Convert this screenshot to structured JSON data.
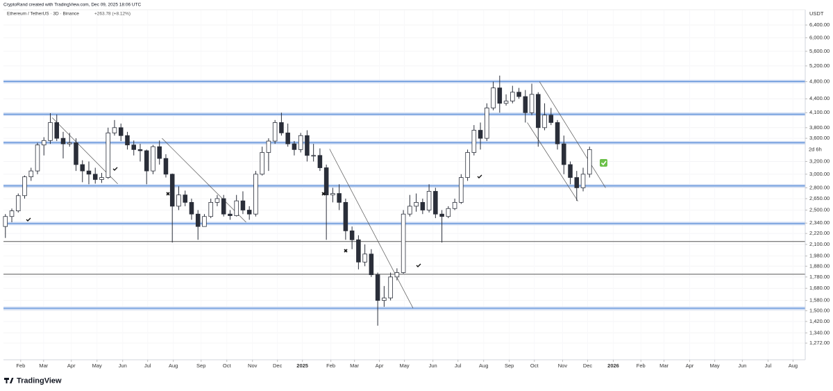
{
  "header": {
    "credit": "CryptoRand created with TradingView.com, Dec 09, 2025 18:06 UTC",
    "symbol": "Ethereum / TetherUS · 3D · Binance",
    "change": "+263.78 (+8.12%)",
    "logo": "TradingView"
  },
  "chart_data": {
    "type": "candlestick",
    "log_scale": true,
    "y_axis_label": "USDT",
    "countdown": "2d 6h",
    "grid": true,
    "up_color": "#ffffff",
    "down_color": "#2a2e39",
    "border_color": "#2a2e39",
    "xlim": [
      -0.3,
      124.6
    ],
    "ylim": [
      1169,
      6917
    ],
    "xticks": [
      {
        "value": 2.38,
        "label": "Feb"
      },
      {
        "value": 5.95,
        "label": "Mar"
      },
      {
        "value": 10.27,
        "label": "Apr"
      },
      {
        "value": 14.27,
        "label": "May"
      },
      {
        "value": 18.27,
        "label": "Jun"
      },
      {
        "value": 22.16,
        "label": "Jul"
      },
      {
        "value": 26.16,
        "label": "Aug"
      },
      {
        "value": 30.49,
        "label": "Sep"
      },
      {
        "value": 34.49,
        "label": "Oct"
      },
      {
        "value": 38.49,
        "label": "Nov"
      },
      {
        "value": 42.38,
        "label": "Dec"
      },
      {
        "value": 46.27,
        "label": "2025"
      },
      {
        "value": 50.7,
        "label": "Feb"
      },
      {
        "value": 54.38,
        "label": "Mar"
      },
      {
        "value": 58.27,
        "label": "Apr"
      },
      {
        "value": 62.16,
        "label": "May"
      },
      {
        "value": 66.6,
        "label": "Jun"
      },
      {
        "value": 70.5,
        "label": "Jul"
      },
      {
        "value": 74.5,
        "label": "Aug"
      },
      {
        "value": 78.5,
        "label": "Sep"
      },
      {
        "value": 82.4,
        "label": "Oct"
      },
      {
        "value": 86.8,
        "label": "Nov"
      },
      {
        "value": 90.7,
        "label": "Dec"
      },
      {
        "value": 94.7,
        "label": "2026"
      },
      {
        "value": 99.0,
        "label": "Feb"
      },
      {
        "value": 102.6,
        "label": "Mar"
      },
      {
        "value": 106.6,
        "label": "Apr"
      },
      {
        "value": 110.5,
        "label": "May"
      },
      {
        "value": 114.8,
        "label": "Jun"
      },
      {
        "value": 118.8,
        "label": "Jul"
      },
      {
        "value": 122.7,
        "label": "Aug"
      }
    ],
    "yticks": [
      {
        "value": 1272,
        "label": "1,272.00"
      },
      {
        "value": 1340,
        "label": "1,340.00"
      },
      {
        "value": 1420,
        "label": "1,420.00"
      },
      {
        "value": 1500,
        "label": "1,500.00"
      },
      {
        "value": 1580,
        "label": "1,580.00"
      },
      {
        "value": 1680,
        "label": "1,680.00"
      },
      {
        "value": 1780,
        "label": "1,780.00"
      },
      {
        "value": 1880,
        "label": "1,880.00"
      },
      {
        "value": 1980,
        "label": "1,980.00"
      },
      {
        "value": 2100,
        "label": "2,100.00"
      },
      {
        "value": 2220,
        "label": "2,220.00"
      },
      {
        "value": 2340,
        "label": "2,340.00"
      },
      {
        "value": 2500,
        "label": "2,500.00"
      },
      {
        "value": 2650,
        "label": "2,650.00"
      },
      {
        "value": 2800,
        "label": "2,800.00"
      },
      {
        "value": 3000,
        "label": "3,000.00"
      },
      {
        "value": 3200,
        "label": "3,200.00"
      },
      {
        "value": 3600,
        "label": "3,600.00"
      },
      {
        "value": 3800,
        "label": "3,800.00"
      },
      {
        "value": 4100,
        "label": "4,100.00"
      },
      {
        "value": 4400,
        "label": "4,400.00"
      },
      {
        "value": 4800,
        "label": "4,800.00"
      },
      {
        "value": 5200,
        "label": "5,200.00"
      },
      {
        "value": 5600,
        "label": "5,600.00"
      },
      {
        "value": 6000,
        "label": "6,000.00"
      },
      {
        "value": 6400,
        "label": "6,400.00"
      }
    ],
    "levels": [
      {
        "value": 4803,
        "color": "#5b8fd8",
        "zone": true
      },
      {
        "value": 4068,
        "color": "#5b8fd8",
        "zone": true
      },
      {
        "value": 3520,
        "color": "#5b8fd8",
        "zone": true
      },
      {
        "value": 2827,
        "color": "#5b8fd8",
        "zone": true
      },
      {
        "value": 2335,
        "color": "#5b8fd8",
        "zone": true
      },
      {
        "value": 2131,
        "color": "#555555",
        "zone": false
      },
      {
        "value": 1805,
        "color": "#555555",
        "zone": false
      },
      {
        "value": 1518,
        "color": "#5b8fd8",
        "zone": true
      }
    ],
    "trendlines": [
      [
        7.3,
        3996,
        17.5,
        2856
      ],
      [
        24.4,
        3600,
        37.5,
        2350
      ],
      [
        50.5,
        3410,
        63.5,
        1520
      ],
      [
        83.2,
        4800,
        93.5,
        2800
      ],
      [
        81.3,
        3900,
        89.2,
        2615
      ]
    ],
    "series": [
      {
        "name": "ETHUSDT",
        "values": [
          [
            2300,
            2450,
            2170,
            2420
          ],
          [
            2420,
            2520,
            2350,
            2490
          ],
          [
            2490,
            2720,
            2470,
            2690
          ],
          [
            2690,
            2980,
            2650,
            2960
          ],
          [
            2960,
            3100,
            2900,
            3050
          ],
          [
            3050,
            3520,
            3000,
            3480
          ],
          [
            3480,
            3620,
            3300,
            3560
          ],
          [
            3560,
            4090,
            3500,
            3900
          ],
          [
            3900,
            4060,
            3550,
            3600
          ],
          [
            3600,
            3720,
            3250,
            3500
          ],
          [
            3500,
            3700,
            3450,
            3520
          ],
          [
            3520,
            3600,
            3050,
            3150
          ],
          [
            3150,
            3220,
            2880,
            3050
          ],
          [
            3050,
            3200,
            2850,
            3000
          ],
          [
            3000,
            3100,
            2860,
            2920
          ],
          [
            2920,
            3020,
            2870,
            2950
          ],
          [
            2950,
            3800,
            2930,
            3700
          ],
          [
            3700,
            3950,
            3650,
            3800
          ],
          [
            3800,
            3880,
            3550,
            3650
          ],
          [
            3650,
            3720,
            3400,
            3480
          ],
          [
            3480,
            3560,
            3300,
            3400
          ],
          [
            3400,
            3500,
            3200,
            3380
          ],
          [
            3380,
            3400,
            2850,
            3050
          ],
          [
            3050,
            3480,
            3000,
            3450
          ],
          [
            3450,
            3560,
            3150,
            3250
          ],
          [
            3250,
            3320,
            2950,
            3000
          ],
          [
            3000,
            3010,
            2120,
            2550
          ],
          [
            2550,
            2820,
            2500,
            2700
          ],
          [
            2700,
            2760,
            2550,
            2600
          ],
          [
            2600,
            2650,
            2380,
            2450
          ],
          [
            2450,
            2500,
            2150,
            2300
          ],
          [
            2300,
            2450,
            2300,
            2420
          ],
          [
            2420,
            2650,
            2400,
            2600
          ],
          [
            2600,
            2700,
            2550,
            2650
          ],
          [
            2650,
            2700,
            2420,
            2450
          ],
          [
            2450,
            2500,
            2380,
            2430
          ],
          [
            2430,
            2700,
            2420,
            2620
          ],
          [
            2620,
            2750,
            2450,
            2500
          ],
          [
            2500,
            2550,
            2380,
            2450
          ],
          [
            2450,
            3050,
            2420,
            3000
          ],
          [
            3000,
            3450,
            2980,
            3350
          ],
          [
            3350,
            3600,
            3050,
            3550
          ],
          [
            3550,
            3950,
            3500,
            3900
          ],
          [
            3900,
            4100,
            3650,
            3700
          ],
          [
            3700,
            3880,
            3450,
            3500
          ],
          [
            3500,
            3550,
            3300,
            3400
          ],
          [
            3400,
            3700,
            3350,
            3650
          ],
          [
            3650,
            3750,
            3200,
            3300
          ],
          [
            3300,
            3500,
            3200,
            3300
          ],
          [
            3300,
            3420,
            3050,
            3100
          ],
          [
            3100,
            3150,
            2150,
            2700
          ],
          [
            2700,
            2800,
            2600,
            2720
          ],
          [
            2720,
            2850,
            2500,
            2600
          ],
          [
            2600,
            2650,
            2150,
            2250
          ],
          [
            2250,
            2300,
            2050,
            2150
          ],
          [
            2150,
            2200,
            1850,
            1920
          ],
          [
            1920,
            2100,
            1880,
            2000
          ],
          [
            2000,
            2050,
            1780,
            1800
          ],
          [
            1800,
            1820,
            1390,
            1580
          ],
          [
            1580,
            1700,
            1530,
            1600
          ],
          [
            1600,
            1820,
            1580,
            1780
          ],
          [
            1780,
            1860,
            1750,
            1820
          ],
          [
            1820,
            2500,
            1810,
            2450
          ],
          [
            2450,
            2700,
            2420,
            2550
          ],
          [
            2550,
            2720,
            2480,
            2600
          ],
          [
            2600,
            2650,
            2450,
            2500
          ],
          [
            2500,
            2850,
            2470,
            2750
          ],
          [
            2750,
            2800,
            2400,
            2450
          ],
          [
            2450,
            2500,
            2120,
            2420
          ],
          [
            2420,
            2550,
            2400,
            2520
          ],
          [
            2520,
            2650,
            2500,
            2600
          ],
          [
            2600,
            3000,
            2580,
            2950
          ],
          [
            2950,
            3400,
            2900,
            3350
          ],
          [
            3350,
            3850,
            3300,
            3750
          ],
          [
            3750,
            3900,
            3400,
            3600
          ],
          [
            3600,
            4300,
            3550,
            4200
          ],
          [
            4200,
            4800,
            4150,
            4650
          ],
          [
            4650,
            4950,
            4100,
            4300
          ],
          [
            4300,
            4500,
            4250,
            4350
          ],
          [
            4350,
            4700,
            4300,
            4550
          ],
          [
            4550,
            4650,
            4400,
            4450
          ],
          [
            4450,
            4600,
            3900,
            4100
          ],
          [
            4100,
            4750,
            4050,
            4500
          ],
          [
            4500,
            4550,
            3450,
            3800
          ],
          [
            3800,
            4300,
            3750,
            4050
          ],
          [
            4050,
            4200,
            3850,
            3900
          ],
          [
            3900,
            3950,
            3400,
            3500
          ],
          [
            3500,
            3650,
            3000,
            3150
          ],
          [
            3150,
            3200,
            2850,
            2950
          ],
          [
            2950,
            3050,
            2620,
            2800
          ],
          [
            2800,
            3100,
            2750,
            3000
          ],
          [
            3000,
            3450,
            2950,
            3400
          ]
        ]
      }
    ]
  }
}
